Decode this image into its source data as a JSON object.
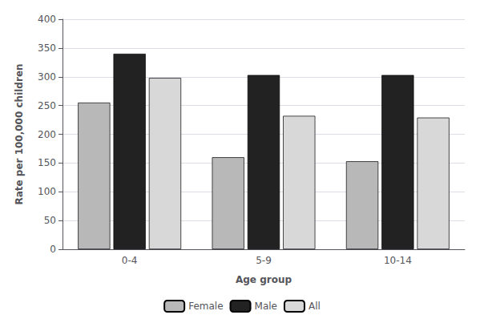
{
  "chart_data": {
    "type": "bar",
    "categories": [
      "0-4",
      "5-9",
      "10-14"
    ],
    "series": [
      {
        "name": "Female",
        "color": "#b8b8b8",
        "values": [
          255,
          160,
          153
        ]
      },
      {
        "name": "Male",
        "color": "#222222",
        "values": [
          340,
          303,
          303
        ]
      },
      {
        "name": "All",
        "color": "#d8d8d8",
        "values": [
          298,
          232,
          229
        ]
      }
    ],
    "xlabel": "Age group",
    "ylabel": "Rate per 100,000 children",
    "ylim": [
      0,
      400
    ],
    "yticks": [
      0,
      50,
      100,
      150,
      200,
      250,
      300,
      350,
      400
    ],
    "grid": true,
    "legend": "bottom"
  }
}
